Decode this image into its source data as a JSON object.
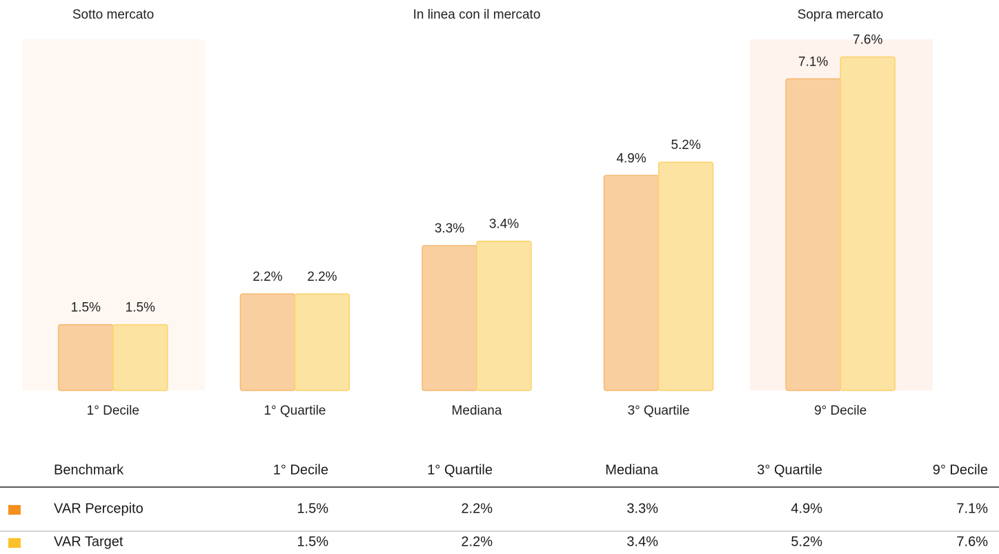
{
  "chart_data": {
    "type": "bar",
    "annotations": [
      "Sotto mercato",
      "In linea con il mercato",
      "Sopra mercato"
    ],
    "categories": [
      "1° Decile",
      "1° Quartile",
      "Mediana",
      "3° Quartile",
      "9° Decile"
    ],
    "series": [
      {
        "name": "VAR Percepito",
        "color": "#f9cf9f",
        "values": [
          1.5,
          2.2,
          3.3,
          4.9,
          7.1
        ],
        "value_labels": [
          "1.5%",
          "2.2%",
          "3.3%",
          "4.9%",
          "7.1%"
        ]
      },
      {
        "name": "VAR Target",
        "color": "#fde3a1",
        "values": [
          1.5,
          2.2,
          3.4,
          5.2,
          7.6
        ],
        "value_labels": [
          "1.5%",
          "2.2%",
          "3.4%",
          "5.2%",
          "7.6%"
        ]
      }
    ],
    "ylim": [
      0,
      8
    ],
    "table": {
      "header": "Benchmark",
      "legend_colors": [
        "#f5901e",
        "#fcc02b"
      ]
    }
  }
}
